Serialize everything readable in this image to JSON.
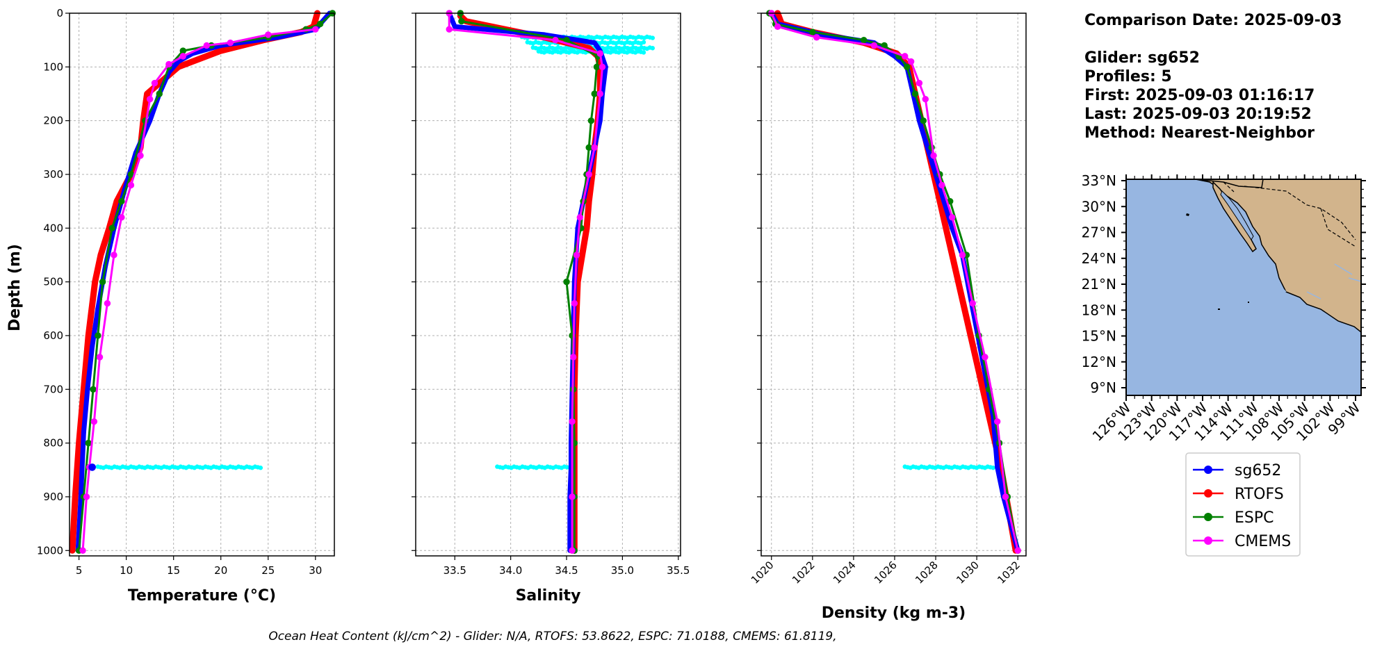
{
  "colors": {
    "glider": "#0000ff",
    "rtofs": "#ff0000",
    "espc": "#008000",
    "cmems": "#ff00ff",
    "raw": "#00ffff",
    "ocean": "#97b6e1",
    "land": "#d2b48c",
    "grid": "#b0b0b0"
  },
  "info": {
    "lines": [
      "Comparison Date: 2025-09-03",
      "",
      "Glider: sg652",
      "Profiles: 5",
      "First: 2025-09-03 01:16:17",
      "Last: 2025-09-03 20:19:52",
      "Method: Nearest-Neighbor"
    ]
  },
  "caption": "Ocean Heat Content (kJ/cm^2) - Glider: N/A,  RTOFS: 53.8622,  ESPC: 71.0188,  CMEMS: 61.8119,",
  "legend": [
    {
      "label": "sg652",
      "color_key": "glider"
    },
    {
      "label": "RTOFS",
      "color_key": "rtofs"
    },
    {
      "label": "ESPC",
      "color_key": "espc"
    },
    {
      "label": "CMEMS",
      "color_key": "cmems"
    }
  ],
  "map": {
    "lat_ticks": [
      "33°N",
      "30°N",
      "27°N",
      "24°N",
      "21°N",
      "18°N",
      "15°N",
      "12°N",
      "9°N"
    ],
    "lon_ticks": [
      "126°W",
      "123°W",
      "120°W",
      "117°W",
      "114°W",
      "111°W",
      "108°W",
      "105°W",
      "102°W",
      "99°W"
    ]
  },
  "chart_data": [
    {
      "type": "line",
      "xlabel": "Temperature (°C)",
      "ylabel": "Depth (m)",
      "xlim": [
        4,
        32
      ],
      "ylim": [
        1010,
        0
      ],
      "xticks": [
        5,
        10,
        15,
        20,
        25,
        30
      ],
      "xtick_labels": [
        "5",
        "10",
        "15",
        "20",
        "25",
        "30"
      ],
      "yticks": [
        0,
        100,
        200,
        300,
        400,
        500,
        600,
        700,
        800,
        900,
        1000
      ],
      "ytick_labels": [
        "0",
        "100",
        "200",
        "300",
        "400",
        "500",
        "600",
        "700",
        "800",
        "900",
        "1000"
      ],
      "grid": true,
      "raw": {
        "name": "glider raw",
        "depth": 845,
        "x_from": 7,
        "x_to": 24.2
      },
      "series": [
        {
          "name": "RTOFS",
          "color_key": "rtofs",
          "width": 9,
          "marker": 6,
          "x": [
            30.2,
            29.8,
            28.5,
            24.5,
            20.0,
            17.0,
            15.5,
            12.2,
            11.8,
            11.5,
            10.5,
            9.0,
            8.2,
            7.3,
            6.7,
            6.0,
            5.5,
            5.0,
            4.6,
            4.3
          ],
          "y": [
            0,
            25,
            35,
            50,
            70,
            90,
            100,
            150,
            200,
            250,
            300,
            350,
            400,
            450,
            500,
            600,
            700,
            800,
            900,
            1000
          ]
        },
        {
          "name": "sg652",
          "color_key": "glider",
          "width": 7,
          "marker": 6,
          "x": [
            31.5,
            31.0,
            30.5,
            30.0,
            26.0,
            20.0,
            17.0,
            15.5,
            14.5,
            13.5,
            12.5,
            11.0,
            9.8,
            8.7,
            7.8,
            7.0,
            6.4,
            5.9,
            5.5,
            5.2,
            4.9
          ],
          "y": [
            0,
            10,
            20,
            30,
            45,
            60,
            75,
            90,
            110,
            150,
            200,
            260,
            330,
            400,
            470,
            550,
            620,
            700,
            780,
            900,
            1000
          ]
        },
        {
          "name": "ESPC",
          "color_key": "espc",
          "width": 3,
          "marker": 8,
          "x": [
            31.8,
            30.5,
            29.0,
            25.0,
            19.0,
            16.0,
            14.5,
            13.5,
            12.0,
            10.5,
            9.5,
            8.5,
            7.5,
            7.0,
            6.5,
            6.0,
            5.5,
            5.0
          ],
          "y": [
            0,
            20,
            30,
            45,
            60,
            70,
            100,
            150,
            200,
            300,
            350,
            400,
            500,
            600,
            700,
            800,
            900,
            1000
          ]
        },
        {
          "name": "CMEMS",
          "color_key": "cmems",
          "width": 3,
          "marker": 8,
          "x": [
            30.0,
            25.0,
            21.0,
            18.5,
            16.0,
            14.5,
            13.0,
            12.5,
            11.5,
            10.5,
            9.5,
            8.7,
            8.0,
            7.2,
            6.6,
            6.1,
            5.8,
            5.4
          ],
          "y": [
            30,
            40,
            55,
            60,
            80,
            95,
            130,
            160,
            265,
            320,
            380,
            450,
            540,
            640,
            760,
            845,
            900,
            1000
          ]
        },
        {
          "name": "sg652",
          "color_key": "glider",
          "width": 0,
          "marker": 9,
          "x": [
            6.4
          ],
          "y": [
            845
          ]
        }
      ]
    },
    {
      "type": "line",
      "xlabel": "Salinity",
      "ylabel": "",
      "xlim": [
        33.15,
        35.52
      ],
      "ylim": [
        1010,
        0
      ],
      "xticks": [
        33.5,
        34.0,
        34.5,
        35.0,
        35.5
      ],
      "xtick_labels": [
        "33.5",
        "34.0",
        "34.5",
        "35.0",
        "35.5"
      ],
      "grid": true,
      "raw": {
        "name": "glider raw",
        "depth": 845,
        "x_from": 33.88,
        "x_to": 34.53
      },
      "raw2": {
        "name": "glider raw upper",
        "depths": [
          45,
          55,
          65,
          72
        ],
        "x_from": 34.1,
        "x_to": 35.27
      },
      "series": [
        {
          "name": "RTOFS",
          "color_key": "rtofs",
          "width": 9,
          "marker": 6,
          "x": [
            33.55,
            33.6,
            34.3,
            34.7,
            34.78,
            34.8,
            34.8,
            34.78,
            34.75,
            34.73,
            34.7,
            34.68,
            34.6,
            34.59,
            34.58,
            34.57,
            34.57,
            34.57,
            34.57
          ],
          "y": [
            5,
            15,
            45,
            65,
            80,
            100,
            150,
            200,
            250,
            300,
            350,
            400,
            500,
            550,
            600,
            700,
            800,
            900,
            1000
          ]
        },
        {
          "name": "sg652",
          "color_key": "glider",
          "width": 7,
          "marker": 6,
          "x": [
            33.45,
            33.5,
            34.3,
            34.75,
            34.8,
            34.85,
            34.82,
            34.8,
            34.75,
            34.7,
            34.65,
            34.6,
            34.57,
            34.56,
            34.55,
            34.54,
            34.54,
            34.53,
            34.53
          ],
          "y": [
            0,
            25,
            40,
            55,
            70,
            100,
            150,
            200,
            250,
            300,
            350,
            400,
            500,
            600,
            700,
            800,
            845,
            900,
            1000
          ]
        },
        {
          "name": "ESPC",
          "color_key": "espc",
          "width": 3,
          "marker": 8,
          "x": [
            33.55,
            33.56,
            34.5,
            34.78,
            34.77,
            34.75,
            34.72,
            34.7,
            34.68,
            34.65,
            34.63,
            34.5,
            34.55,
            34.56,
            34.57,
            34.57,
            34.57
          ],
          "y": [
            0,
            15,
            50,
            80,
            100,
            150,
            200,
            250,
            300,
            350,
            400,
            500,
            600,
            700,
            800,
            900,
            1000
          ]
        },
        {
          "name": "CMEMS",
          "color_key": "cmems",
          "width": 3,
          "marker": 8,
          "x": [
            33.45,
            33.45,
            34.4,
            34.8,
            34.82,
            34.8,
            34.75,
            34.7,
            34.62,
            34.59,
            34.57,
            34.56,
            34.55,
            34.55,
            34.55
          ],
          "y": [
            0,
            30,
            50,
            75,
            100,
            150,
            250,
            300,
            380,
            450,
            540,
            640,
            760,
            900,
            1000
          ]
        }
      ]
    },
    {
      "type": "line",
      "xlabel": "Density (kg m-3)",
      "ylabel": "",
      "xlim": [
        1019.5,
        1032.4
      ],
      "ylim": [
        1010,
        0
      ],
      "xticks": [
        1020,
        1022,
        1024,
        1026,
        1028,
        1030,
        1032
      ],
      "xtick_labels": [
        "1020",
        "1022",
        "1024",
        "1026",
        "1028",
        "1030",
        "1032"
      ],
      "grid": true,
      "raw": {
        "name": "glider raw",
        "depth": 845,
        "x_from": 1026.5,
        "x_to": 1030.8
      },
      "series": [
        {
          "name": "RTOFS",
          "color_key": "rtofs",
          "width": 9,
          "marker": 6,
          "x": [
            1020.3,
            1020.5,
            1022.0,
            1024.5,
            1026.1,
            1026.7,
            1027.0,
            1027.3,
            1027.6,
            1027.9,
            1028.2,
            1028.5,
            1028.8,
            1029.4,
            1030.0,
            1030.6,
            1031.2,
            1031.9
          ],
          "y": [
            0,
            20,
            35,
            55,
            75,
            100,
            150,
            200,
            250,
            300,
            350,
            400,
            450,
            550,
            650,
            750,
            850,
            1000
          ]
        },
        {
          "name": "sg652",
          "color_key": "glider",
          "width": 7,
          "marker": 6,
          "x": [
            1020.0,
            1020.3,
            1022.5,
            1025.0,
            1026.0,
            1026.6,
            1026.9,
            1027.2,
            1027.6,
            1028.0,
            1028.4,
            1028.8,
            1029.3,
            1029.8,
            1030.3,
            1030.8,
            1031.0,
            1031.3,
            1032.0
          ],
          "y": [
            0,
            20,
            40,
            55,
            80,
            100,
            150,
            200,
            250,
            300,
            350,
            400,
            450,
            550,
            650,
            750,
            845,
            900,
            1000
          ]
        },
        {
          "name": "ESPC",
          "color_key": "espc",
          "width": 3,
          "marker": 8,
          "x": [
            1019.9,
            1020.2,
            1022.0,
            1024.5,
            1025.5,
            1026.2,
            1026.6,
            1027.0,
            1027.4,
            1027.8,
            1028.2,
            1028.7,
            1029.5,
            1030.1,
            1030.6,
            1031.1,
            1031.5,
            1032.0
          ],
          "y": [
            0,
            20,
            35,
            50,
            60,
            80,
            100,
            150,
            200,
            250,
            300,
            350,
            450,
            600,
            700,
            800,
            900,
            1000
          ]
        },
        {
          "name": "CMEMS",
          "color_key": "cmems",
          "width": 3,
          "marker": 8,
          "x": [
            1020.0,
            1020.3,
            1022.2,
            1025.0,
            1026.5,
            1026.8,
            1027.2,
            1027.5,
            1027.9,
            1028.3,
            1028.8,
            1029.3,
            1029.8,
            1030.4,
            1031.0,
            1031.4,
            1032.0
          ],
          "y": [
            0,
            25,
            45,
            60,
            80,
            90,
            130,
            160,
            265,
            320,
            380,
            450,
            540,
            640,
            760,
            900,
            1000
          ]
        }
      ]
    }
  ]
}
